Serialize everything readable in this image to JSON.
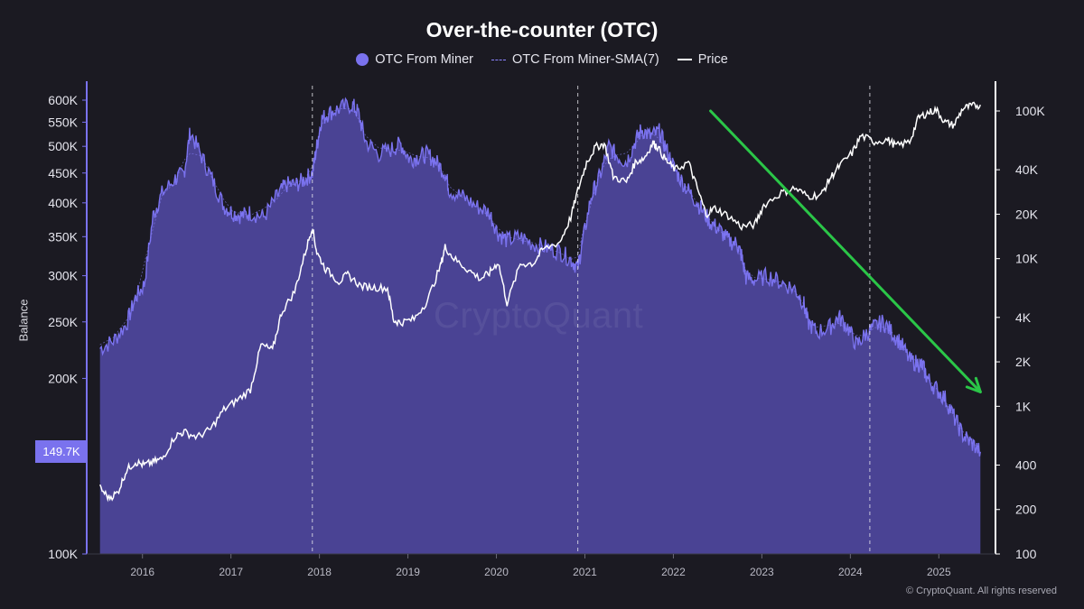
{
  "title": "Over-the-counter (OTC)",
  "legend": [
    {
      "label": "OTC From Miner",
      "color": "#7a72ee",
      "kind": "dot"
    },
    {
      "label": "OTC From Miner-SMA(7)",
      "color": "#8a84ff",
      "kind": "dashed"
    },
    {
      "label": "Price",
      "color": "#ffffff",
      "kind": "line"
    }
  ],
  "ylabel_left": "Balance",
  "current_value_badge": "149.7K",
  "watermark": "CryptoQuant",
  "copyright": "© CryptoQuant. All rights reserved",
  "chart_data": {
    "type": "area",
    "title": "Over-the-counter (OTC)",
    "ylabel": "Balance",
    "y_scale": "log",
    "y_range": [
      100000,
      650000
    ],
    "y_ticks": [
      {
        "value": 600000,
        "label": "600K"
      },
      {
        "value": 550000,
        "label": "550K"
      },
      {
        "value": 500000,
        "label": "500K"
      },
      {
        "value": 450000,
        "label": "450K"
      },
      {
        "value": 400000,
        "label": "400K"
      },
      {
        "value": 350000,
        "label": "350K"
      },
      {
        "value": 300000,
        "label": "300K"
      },
      {
        "value": 250000,
        "label": "250K"
      },
      {
        "value": 200000,
        "label": "200K"
      },
      {
        "value": 100000,
        "label": "100K"
      }
    ],
    "y2_scale": "log",
    "y2_range": [
      100,
      130000
    ],
    "y2_ticks": [
      {
        "value": 100000,
        "label": "100K"
      },
      {
        "value": 40000,
        "label": "40K"
      },
      {
        "value": 20000,
        "label": "20K"
      },
      {
        "value": 10000,
        "label": "10K"
      },
      {
        "value": 4000,
        "label": "4K"
      },
      {
        "value": 2000,
        "label": "2K"
      },
      {
        "value": 1000,
        "label": "1K"
      },
      {
        "value": 400,
        "label": "400"
      },
      {
        "value": 200,
        "label": "200"
      },
      {
        "value": 100,
        "label": "100"
      }
    ],
    "x_range": [
      2015.45,
      2025.72
    ],
    "x_ticks": [
      "2016",
      "2017",
      "2018",
      "2019",
      "2020",
      "2021",
      "2022",
      "2023",
      "2024",
      "2025"
    ],
    "halving_markers": [
      2018.0,
      2021.0,
      2024.3
    ],
    "grid": false,
    "legend_position": "top-center",
    "series": [
      {
        "name": "OTC From Miner",
        "color": "#7a72ee",
        "points": [
          [
            2015.6,
            225000
          ],
          [
            2015.75,
            232000
          ],
          [
            2015.9,
            248000
          ],
          [
            2016.0,
            275000
          ],
          [
            2016.1,
            290000
          ],
          [
            2016.2,
            380000
          ],
          [
            2016.3,
            415000
          ],
          [
            2016.45,
            440000
          ],
          [
            2016.55,
            450000
          ],
          [
            2016.62,
            530000
          ],
          [
            2016.75,
            480000
          ],
          [
            2016.88,
            435000
          ],
          [
            2017.0,
            395000
          ],
          [
            2017.1,
            385000
          ],
          [
            2017.2,
            380000
          ],
          [
            2017.3,
            385000
          ],
          [
            2017.45,
            378000
          ],
          [
            2017.6,
            410000
          ],
          [
            2017.7,
            430000
          ],
          [
            2017.82,
            430000
          ],
          [
            2017.92,
            440000
          ],
          [
            2018.0,
            450000
          ],
          [
            2018.05,
            500000
          ],
          [
            2018.1,
            555000
          ],
          [
            2018.18,
            570000
          ],
          [
            2018.3,
            580000
          ],
          [
            2018.45,
            590000
          ],
          [
            2018.52,
            570000
          ],
          [
            2018.6,
            510000
          ],
          [
            2018.75,
            485000
          ],
          [
            2018.9,
            495000
          ],
          [
            2019.0,
            505000
          ],
          [
            2019.1,
            475000
          ],
          [
            2019.2,
            480000
          ],
          [
            2019.3,
            485000
          ],
          [
            2019.4,
            470000
          ],
          [
            2019.5,
            450000
          ],
          [
            2019.55,
            420000
          ],
          [
            2019.7,
            410000
          ],
          [
            2019.85,
            395000
          ],
          [
            2020.0,
            385000
          ],
          [
            2020.1,
            355000
          ],
          [
            2020.2,
            345000
          ],
          [
            2020.35,
            350000
          ],
          [
            2020.5,
            340000
          ],
          [
            2020.65,
            335000
          ],
          [
            2020.8,
            330000
          ],
          [
            2020.92,
            320000
          ],
          [
            2021.0,
            310000
          ],
          [
            2021.05,
            340000
          ],
          [
            2021.15,
            410000
          ],
          [
            2021.25,
            445000
          ],
          [
            2021.35,
            500000
          ],
          [
            2021.45,
            480000
          ],
          [
            2021.55,
            470000
          ],
          [
            2021.65,
            510000
          ],
          [
            2021.72,
            535000
          ],
          [
            2021.82,
            520000
          ],
          [
            2021.92,
            530000
          ],
          [
            2022.0,
            495000
          ],
          [
            2022.1,
            455000
          ],
          [
            2022.2,
            430000
          ],
          [
            2022.3,
            410000
          ],
          [
            2022.4,
            390000
          ],
          [
            2022.5,
            370000
          ],
          [
            2022.6,
            360000
          ],
          [
            2022.7,
            345000
          ],
          [
            2022.8,
            340000
          ],
          [
            2022.85,
            325000
          ],
          [
            2022.9,
            298000
          ],
          [
            2023.0,
            295000
          ],
          [
            2023.15,
            300000
          ],
          [
            2023.3,
            292000
          ],
          [
            2023.45,
            285000
          ],
          [
            2023.55,
            270000
          ],
          [
            2023.6,
            250000
          ],
          [
            2023.7,
            240000
          ],
          [
            2023.85,
            245000
          ],
          [
            2023.95,
            255000
          ],
          [
            2024.05,
            245000
          ],
          [
            2024.15,
            228000
          ],
          [
            2024.25,
            238000
          ],
          [
            2024.35,
            245000
          ],
          [
            2024.45,
            250000
          ],
          [
            2024.55,
            240000
          ],
          [
            2024.65,
            230000
          ],
          [
            2024.75,
            215000
          ],
          [
            2024.85,
            212000
          ],
          [
            2024.9,
            210000
          ],
          [
            2024.95,
            200000
          ],
          [
            2025.05,
            192000
          ],
          [
            2025.15,
            185000
          ],
          [
            2025.25,
            172000
          ],
          [
            2025.35,
            160000
          ],
          [
            2025.45,
            155000
          ],
          [
            2025.55,
            149700
          ]
        ]
      },
      {
        "name": "Price",
        "color": "#ffffff",
        "points": [
          [
            2015.6,
            280
          ],
          [
            2015.7,
            240
          ],
          [
            2015.8,
            260
          ],
          [
            2015.9,
            370
          ],
          [
            2016.0,
            420
          ],
          [
            2016.1,
            400
          ],
          [
            2016.2,
            420
          ],
          [
            2016.3,
            440
          ],
          [
            2016.45,
            630
          ],
          [
            2016.55,
            670
          ],
          [
            2016.7,
            620
          ],
          [
            2016.85,
            700
          ],
          [
            2017.0,
            950
          ],
          [
            2017.15,
            1100
          ],
          [
            2017.3,
            1300
          ],
          [
            2017.42,
            2600
          ],
          [
            2017.55,
            2400
          ],
          [
            2017.65,
            4300
          ],
          [
            2017.8,
            6000
          ],
          [
            2017.92,
            11000
          ],
          [
            2018.0,
            16500
          ],
          [
            2018.05,
            11000
          ],
          [
            2018.15,
            8500
          ],
          [
            2018.3,
            7000
          ],
          [
            2018.4,
            7800
          ],
          [
            2018.55,
            6500
          ],
          [
            2018.7,
            6400
          ],
          [
            2018.85,
            6300
          ],
          [
            2018.92,
            3800
          ],
          [
            2019.0,
            3700
          ],
          [
            2019.15,
            3900
          ],
          [
            2019.3,
            5200
          ],
          [
            2019.45,
            9000
          ],
          [
            2019.5,
            12000
          ],
          [
            2019.6,
            10000
          ],
          [
            2019.75,
            8500
          ],
          [
            2019.9,
            7300
          ],
          [
            2020.0,
            8000
          ],
          [
            2020.1,
            9500
          ],
          [
            2020.2,
            5000
          ],
          [
            2020.35,
            9200
          ],
          [
            2020.5,
            9300
          ],
          [
            2020.6,
            11500
          ],
          [
            2020.8,
            13000
          ],
          [
            2020.92,
            19000
          ],
          [
            2021.0,
            29000
          ],
          [
            2021.1,
            45000
          ],
          [
            2021.2,
            57000
          ],
          [
            2021.3,
            60000
          ],
          [
            2021.4,
            36000
          ],
          [
            2021.55,
            33000
          ],
          [
            2021.65,
            45000
          ],
          [
            2021.75,
            48000
          ],
          [
            2021.85,
            61000
          ],
          [
            2021.9,
            57000
          ],
          [
            2022.0,
            46000
          ],
          [
            2022.1,
            40000
          ],
          [
            2022.25,
            45000
          ],
          [
            2022.35,
            30000
          ],
          [
            2022.45,
            20000
          ],
          [
            2022.55,
            22000
          ],
          [
            2022.7,
            19500
          ],
          [
            2022.85,
            16500
          ],
          [
            2023.0,
            17000
          ],
          [
            2023.1,
            23000
          ],
          [
            2023.3,
            28000
          ],
          [
            2023.45,
            30000
          ],
          [
            2023.6,
            26500
          ],
          [
            2023.75,
            27000
          ],
          [
            2023.85,
            35000
          ],
          [
            2023.95,
            42000
          ],
          [
            2024.1,
            52000
          ],
          [
            2024.2,
            68000
          ],
          [
            2024.35,
            62000
          ],
          [
            2024.5,
            64000
          ],
          [
            2024.6,
            58000
          ],
          [
            2024.75,
            62000
          ],
          [
            2024.85,
            90000
          ],
          [
            2024.95,
            97000
          ],
          [
            2025.05,
            102000
          ],
          [
            2025.15,
            84000
          ],
          [
            2025.25,
            80000
          ],
          [
            2025.35,
            104000
          ],
          [
            2025.45,
            108000
          ],
          [
            2025.55,
            110000
          ]
        ]
      }
    ],
    "annotations": [
      {
        "type": "arrow",
        "color": "#2bc648",
        "from": [
          2022.5,
          100000
        ],
        "to": [
          2025.55,
          1250
        ]
      }
    ]
  }
}
